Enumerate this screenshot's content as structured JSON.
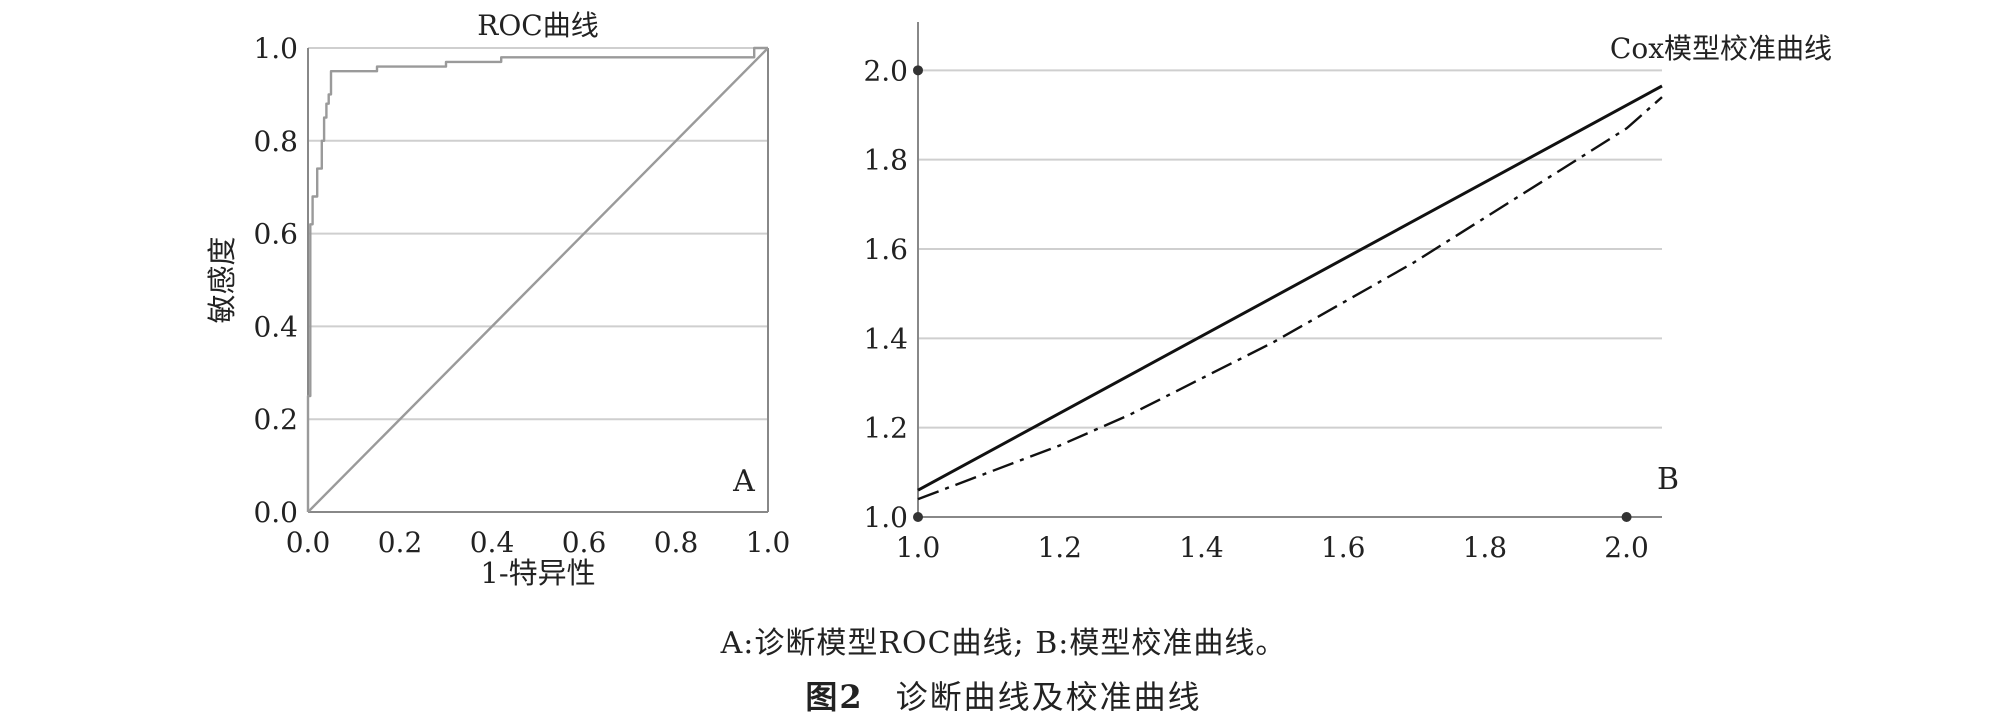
{
  "chart_data": [
    {
      "panel": "A",
      "type": "line",
      "title": "ROC曲线",
      "xlabel": "1-特异性",
      "ylabel": "敏感度",
      "xlim": [
        0,
        1
      ],
      "ylim": [
        0,
        1
      ],
      "xticks": [
        "0.0",
        "0.2",
        "0.4",
        "0.6",
        "0.8",
        "1.0"
      ],
      "yticks": [
        "0.0",
        "0.2",
        "0.4",
        "0.6",
        "0.8",
        "1.0"
      ],
      "grid": "horizontal",
      "series": [
        {
          "color": "#9a9a9a",
          "style": "step",
          "x": [
            0,
            0,
            0.005,
            0.005,
            0.01,
            0.01,
            0.02,
            0.02,
            0.03,
            0.03,
            0.035,
            0.035,
            0.04,
            0.04,
            0.045,
            0.045,
            0.05,
            0.05,
            0.15,
            0.15,
            0.3,
            0.3,
            0.42,
            0.42,
            0.6,
            0.6,
            0.97,
            0.97,
            1.0
          ],
          "y": [
            0,
            0.25,
            0.25,
            0.62,
            0.62,
            0.68,
            0.68,
            0.74,
            0.74,
            0.8,
            0.8,
            0.85,
            0.85,
            0.88,
            0.88,
            0.9,
            0.9,
            0.95,
            0.95,
            0.96,
            0.96,
            0.97,
            0.97,
            0.98,
            0.98,
            0.98,
            0.98,
            1.0,
            1.0
          ]
        },
        {
          "color": "#9a9a9a",
          "style": "solid",
          "x": [
            0,
            1
          ],
          "y": [
            0,
            1
          ]
        }
      ],
      "annotation": "A"
    },
    {
      "panel": "B",
      "type": "line",
      "title": "Cox模型校准曲线",
      "xlabel": "",
      "ylabel": "",
      "xlim": [
        1.0,
        2.05
      ],
      "ylim": [
        1.0,
        2.05
      ],
      "xticks": [
        "1.0",
        "1.2",
        "1.4",
        "1.6",
        "1.8",
        "2.0"
      ],
      "yticks": [
        "1.0",
        "1.2",
        "1.4",
        "1.6",
        "1.8",
        "2.0"
      ],
      "grid": "horizontal",
      "series": [
        {
          "color": "#111111",
          "style": "solid",
          "x": [
            1.0,
            2.05
          ],
          "y": [
            1.06,
            1.965
          ]
        },
        {
          "color": "#111111",
          "style": "dashdot",
          "x": [
            1.0,
            1.1,
            1.2,
            1.3,
            1.4,
            1.5,
            1.6,
            1.7,
            1.8,
            1.9,
            2.0,
            2.05
          ],
          "y": [
            1.04,
            1.1,
            1.16,
            1.23,
            1.31,
            1.39,
            1.48,
            1.57,
            1.67,
            1.77,
            1.87,
            1.94
          ]
        }
      ],
      "points": [
        {
          "x": 1.0,
          "y": 2.0
        },
        {
          "x": 1.0,
          "y": 1.0
        },
        {
          "x": 2.0,
          "y": 1.0
        }
      ],
      "annotation": "B"
    }
  ],
  "captions": {
    "sub": "A:诊断模型ROC曲线; B:模型校准曲线。",
    "figure_number": "图2",
    "figure_title": "诊断曲线及校准曲线"
  }
}
